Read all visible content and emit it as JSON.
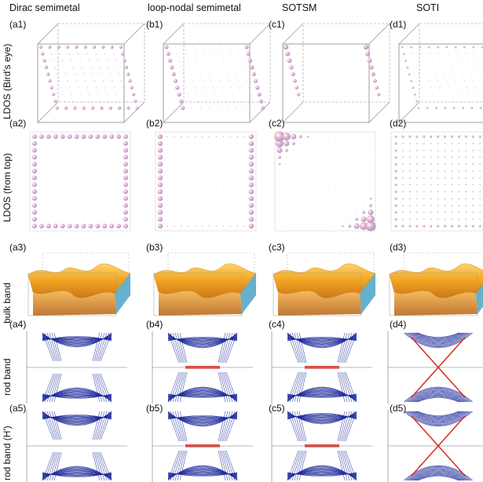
{
  "columns": [
    "Dirac semimetal",
    "loop-nodal semimetal",
    "SOTSM",
    "SOTI"
  ],
  "row_labels": [
    "LDOS (Bird's eye)",
    "LDOS (from top)",
    "bulk band",
    "rod band",
    "rod band (H')"
  ],
  "panel_labels": [
    [
      "(a1)",
      "(b1)",
      "(c1)",
      "(d1)"
    ],
    [
      "(a2)",
      "(b2)",
      "(c2)",
      "(d2)"
    ],
    [
      "(a3)",
      "(b3)",
      "(c3)",
      "(d3)"
    ],
    [
      "(a4)",
      "(b4)",
      "(c4)",
      "(d4)"
    ],
    [
      "(a5)",
      "(b5)",
      "(c5)",
      "(d5)"
    ]
  ],
  "colors": {
    "sphere_pink": "#e9a9c3",
    "sphere_blue": "#a9b6ea",
    "bulk_orange": "#f2a321",
    "bulk_dark": "#c8781a",
    "bulk_side": "#4aa3c6",
    "band_blue": "#1d2b9a",
    "band_red": "#d8241c",
    "axis_gray": "#777777"
  }
}
